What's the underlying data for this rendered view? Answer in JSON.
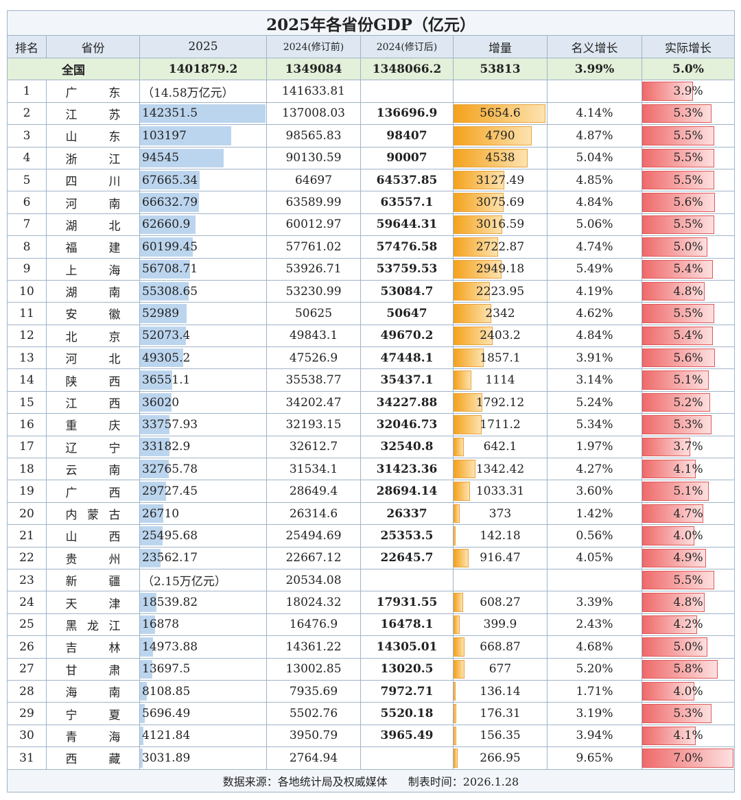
{
  "header": {
    "title": "2025年各省份GDP（亿元）"
  },
  "table": {
    "columns": [
      "排名",
      "省份",
      "2025",
      "2024(修订前)",
      "2024(修订后)",
      "增量",
      "名义增长",
      "实际增长"
    ],
    "national": [
      "全国",
      "1401879.2",
      "1349084",
      "1348066.2",
      "53813",
      "3.99%",
      "5.0%"
    ],
    "rows": [
      [
        "1",
        "广东",
        "（14.58万亿元）",
        "141633.81",
        null,
        null,
        null,
        "3.9%"
      ],
      [
        "2",
        "江苏",
        "142351.5",
        "137008.03",
        "136696.9",
        "5654.6",
        "4.14%",
        "5.3%"
      ],
      [
        "3",
        "山东",
        "103197",
        "98565.83",
        "98407",
        "4790",
        "4.87%",
        "5.5%"
      ],
      [
        "4",
        "浙江",
        "94545",
        "90130.59",
        "90007",
        "4538",
        "5.04%",
        "5.5%"
      ],
      [
        "5",
        "四川",
        "67665.34",
        "64697",
        "64537.85",
        "3127.49",
        "4.85%",
        "5.5%"
      ],
      [
        "6",
        "河南",
        "66632.79",
        "63589.99",
        "63557.1",
        "3075.69",
        "4.84%",
        "5.6%"
      ],
      [
        "7",
        "湖北",
        "62660.9",
        "60012.97",
        "59644.31",
        "3016.59",
        "5.06%",
        "5.5%"
      ],
      [
        "8",
        "福建",
        "60199.45",
        "57761.02",
        "57476.58",
        "2722.87",
        "4.74%",
        "5.0%"
      ],
      [
        "9",
        "上海",
        "56708.71",
        "53926.71",
        "53759.53",
        "2949.18",
        "5.49%",
        "5.4%"
      ],
      [
        "10",
        "湖南",
        "55308.65",
        "53230.99",
        "53084.7",
        "2223.95",
        "4.19%",
        "4.8%"
      ],
      [
        "11",
        "安徽",
        "52989",
        "50625",
        "50647",
        "2342",
        "4.62%",
        "5.5%"
      ],
      [
        "12",
        "北京",
        "52073.4",
        "49843.1",
        "49670.2",
        "2403.2",
        "4.84%",
        "5.4%"
      ],
      [
        "13",
        "河北",
        "49305.2",
        "47526.9",
        "47448.1",
        "1857.1",
        "3.91%",
        "5.6%"
      ],
      [
        "14",
        "陕西",
        "36551.1",
        "35538.77",
        "35437.1",
        "1114",
        "3.14%",
        "5.1%"
      ],
      [
        "15",
        "江西",
        "36020",
        "34202.47",
        "34227.88",
        "1792.12",
        "5.24%",
        "5.2%"
      ],
      [
        "16",
        "重庆",
        "33757.93",
        "32193.15",
        "32046.73",
        "1711.2",
        "5.34%",
        "5.3%"
      ],
      [
        "17",
        "辽宁",
        "33182.9",
        "32612.7",
        "32540.8",
        "642.1",
        "1.97%",
        "3.7%"
      ],
      [
        "18",
        "云南",
        "32765.78",
        "31534.1",
        "31423.36",
        "1342.42",
        "4.27%",
        "4.1%"
      ],
      [
        "19",
        "广西",
        "29727.45",
        "28649.4",
        "28694.14",
        "1033.31",
        "3.60%",
        "5.1%"
      ],
      [
        "20",
        "内蒙古",
        "26710",
        "26314.6",
        "26337",
        "373",
        "1.42%",
        "4.7%"
      ],
      [
        "21",
        "山西",
        "25495.68",
        "25494.69",
        "25353.5",
        "142.18",
        "0.56%",
        "4.0%"
      ],
      [
        "22",
        "贵州",
        "23562.17",
        "22667.12",
        "22645.7",
        "916.47",
        "4.05%",
        "4.9%"
      ],
      [
        "23",
        "新疆",
        "（2.15万亿元）",
        "20534.08",
        null,
        null,
        null,
        "5.5%"
      ],
      [
        "24",
        "天津",
        "18539.82",
        "18024.32",
        "17931.55",
        "608.27",
        "3.39%",
        "4.8%"
      ],
      [
        "25",
        "黑龙江",
        "16878",
        "16476.9",
        "16478.1",
        "399.9",
        "2.43%",
        "4.2%"
      ],
      [
        "26",
        "吉林",
        "14973.88",
        "14361.22",
        "14305.01",
        "668.87",
        "4.68%",
        "5.0%"
      ],
      [
        "27",
        "甘肃",
        "13697.5",
        "13002.85",
        "13020.5",
        "677",
        "5.20%",
        "5.8%"
      ],
      [
        "28",
        "海南",
        "8108.85",
        "7935.69",
        "7972.71",
        "136.14",
        "1.71%",
        "4.0%"
      ],
      [
        "29",
        "宁夏",
        "5696.49",
        "5502.76",
        "5520.18",
        "176.31",
        "3.19%",
        "5.3%"
      ],
      [
        "30",
        "青海",
        "4121.84",
        "3950.79",
        "3965.49",
        "156.35",
        "3.94%",
        "4.1%"
      ],
      [
        "31",
        "西藏",
        "3031.89",
        "2764.94",
        null,
        "266.95",
        "9.65%",
        "7.0%"
      ]
    ]
  },
  "footer": {
    "source": "数据来源：各地统计局及权威媒体",
    "time": "制表时间：2026.1.28"
  }
}
